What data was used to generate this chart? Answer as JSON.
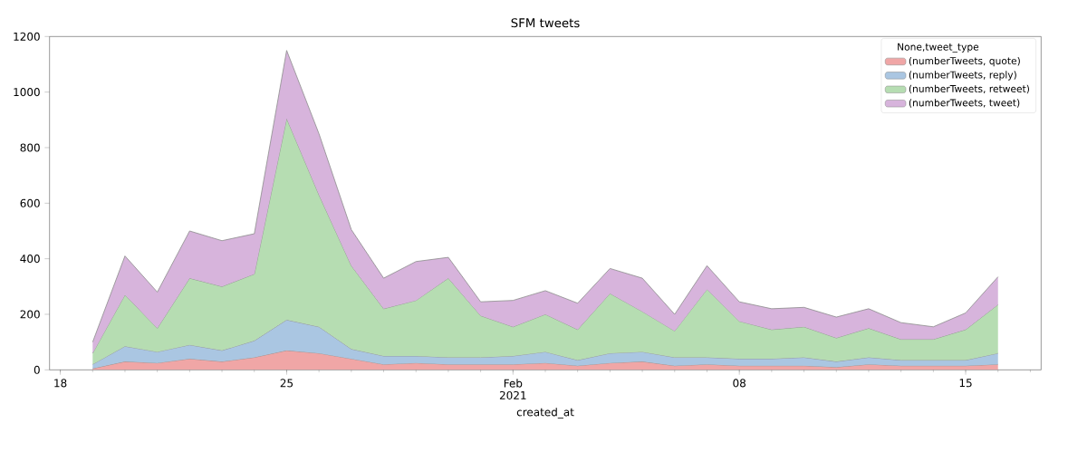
{
  "chart_data": {
    "type": "area",
    "title": "SFM tweets",
    "xlabel": "created_at",
    "legend_title": "None,tweet_type",
    "stacked": true,
    "legend": "top right",
    "grid": false,
    "x": [
      "2021-01-19",
      "2021-01-20",
      "2021-01-21",
      "2021-01-22",
      "2021-01-23",
      "2021-01-24",
      "2021-01-25",
      "2021-01-26",
      "2021-01-27",
      "2021-01-28",
      "2021-01-29",
      "2021-01-30",
      "2021-01-31",
      "2021-02-01",
      "2021-02-02",
      "2021-02-03",
      "2021-02-04",
      "2021-02-05",
      "2021-02-06",
      "2021-02-07",
      "2021-02-08",
      "2021-02-09",
      "2021-02-10",
      "2021-02-11",
      "2021-02-12",
      "2021-02-13",
      "2021-02-14",
      "2021-02-15",
      "2021-02-16"
    ],
    "xlim": [
      "2021-01-17T16:00",
      "2021-02-17T08:00"
    ],
    "xticks": [
      {
        "value": "2021-01-18",
        "label": "18"
      },
      {
        "value": "2021-01-25",
        "label": "25"
      },
      {
        "value": "2021-02-01",
        "label": "Feb 2021"
      },
      {
        "value": "2021-02-08",
        "label": "08"
      },
      {
        "value": "2021-02-15",
        "label": "15"
      }
    ],
    "ylim": [
      0,
      1200
    ],
    "yticks": [
      0,
      200,
      400,
      600,
      800,
      1000,
      1200
    ],
    "series": [
      {
        "name": "(numberTweets, quote)",
        "color": "#f0a6a6",
        "values": [
          5,
          30,
          25,
          40,
          30,
          45,
          70,
          60,
          40,
          20,
          25,
          20,
          20,
          20,
          25,
          15,
          25,
          30,
          15,
          20,
          15,
          15,
          15,
          10,
          20,
          15,
          15,
          15,
          20
        ]
      },
      {
        "name": "(numberTweets, reply)",
        "color": "#aac6e2",
        "values": [
          15,
          55,
          40,
          50,
          40,
          60,
          110,
          95,
          35,
          30,
          25,
          25,
          25,
          30,
          40,
          20,
          35,
          35,
          30,
          25,
          25,
          25,
          30,
          20,
          25,
          20,
          20,
          20,
          40
        ]
      },
      {
        "name": "(numberTweets, retweet)",
        "color": "#b6ddb2",
        "values": [
          40,
          185,
          85,
          240,
          230,
          240,
          725,
          475,
          300,
          170,
          200,
          285,
          150,
          105,
          135,
          110,
          215,
          145,
          95,
          245,
          135,
          105,
          110,
          85,
          105,
          75,
          75,
          110,
          175
        ]
      },
      {
        "name": "(numberTweets, tweet)",
        "color": "#d7b4dc",
        "values": [
          40,
          140,
          130,
          170,
          165,
          145,
          245,
          220,
          130,
          110,
          140,
          75,
          50,
          95,
          85,
          95,
          90,
          120,
          60,
          85,
          70,
          75,
          70,
          75,
          70,
          60,
          45,
          60,
          100
        ]
      }
    ]
  }
}
